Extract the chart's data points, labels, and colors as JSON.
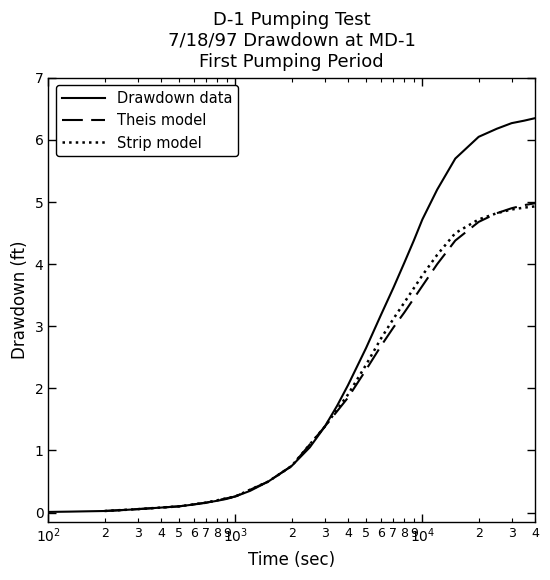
{
  "title": "D-1 Pumping Test\n7/18/97 Drawdown at MD-1\nFirst Pumping Period",
  "xlabel": "Time (sec)",
  "ylabel": "Drawdown (ft)",
  "xlim": [
    100,
    40000
  ],
  "ylim": [
    -0.15,
    7
  ],
  "yticks": [
    0,
    1,
    2,
    3,
    4,
    5,
    6,
    7
  ],
  "legend_labels": [
    "Drawdown data",
    "Theis model",
    "Strip model"
  ],
  "background_color": "#ffffff",
  "title_fontsize": 13,
  "axis_fontsize": 12,
  "legend_fontsize": 10.5,
  "t_data": [
    100,
    130,
    160,
    200,
    250,
    300,
    400,
    500,
    600,
    700,
    800,
    900,
    1000,
    1200,
    1500,
    2000,
    2500,
    3000,
    3500,
    4000,
    5000,
    6000,
    7000,
    8000,
    9000,
    10000,
    12000,
    15000,
    20000,
    25000,
    30000,
    35000,
    40000
  ],
  "dd_data": [
    0.01,
    0.015,
    0.02,
    0.025,
    0.04,
    0.055,
    0.08,
    0.1,
    0.13,
    0.16,
    0.19,
    0.22,
    0.26,
    0.35,
    0.5,
    0.75,
    1.05,
    1.38,
    1.72,
    2.05,
    2.65,
    3.18,
    3.62,
    4.02,
    4.38,
    4.72,
    5.2,
    5.7,
    6.05,
    6.18,
    6.27,
    6.31,
    6.35
  ],
  "t_theis": [
    200,
    300,
    500,
    700,
    1000,
    1500,
    2000,
    3000,
    4000,
    5000,
    6000,
    7000,
    8000,
    10000,
    12000,
    15000,
    20000,
    25000,
    30000,
    35000,
    40000
  ],
  "dd_theis": [
    0.025,
    0.055,
    0.1,
    0.16,
    0.26,
    0.5,
    0.75,
    1.38,
    1.85,
    2.3,
    2.68,
    2.98,
    3.22,
    3.65,
    4.0,
    4.38,
    4.68,
    4.82,
    4.9,
    4.95,
    4.98
  ],
  "t_strip": [
    200,
    300,
    500,
    700,
    1000,
    1500,
    2000,
    3000,
    4000,
    5000,
    6000,
    7000,
    8000,
    10000,
    12000,
    15000,
    20000,
    25000,
    30000,
    35000,
    40000
  ],
  "dd_strip": [
    0.025,
    0.055,
    0.1,
    0.16,
    0.26,
    0.5,
    0.75,
    1.38,
    1.9,
    2.38,
    2.8,
    3.12,
    3.38,
    3.82,
    4.15,
    4.5,
    4.72,
    4.82,
    4.88,
    4.91,
    4.93
  ]
}
